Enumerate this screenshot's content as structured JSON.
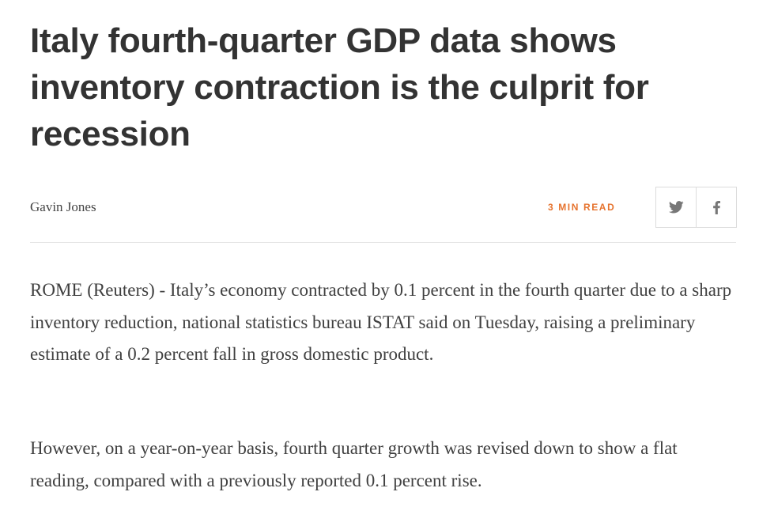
{
  "article": {
    "headline": "Italy fourth-quarter GDP data shows inventory contraction is the culprit for recession",
    "author": "Gavin Jones",
    "read_time": "3 MIN READ",
    "paragraphs": [
      "ROME (Reuters) - Italy’s economy contracted by 0.1 percent in the fourth quarter due to a sharp inventory reduction, national statistics bureau ISTAT said on Tuesday, raising a preliminary estimate of a 0.2 percent fall in gross domestic product.",
      "However, on a year-on-year basis, fourth quarter growth was revised down to show a flat reading, compared with a previously reported 0.1 percent rise."
    ]
  },
  "share": {
    "icons": [
      "twitter-icon",
      "facebook-icon"
    ]
  },
  "colors": {
    "headline": "#333333",
    "accent": "#e6732e",
    "body_text": "#404040",
    "border": "#dcdcdc"
  }
}
